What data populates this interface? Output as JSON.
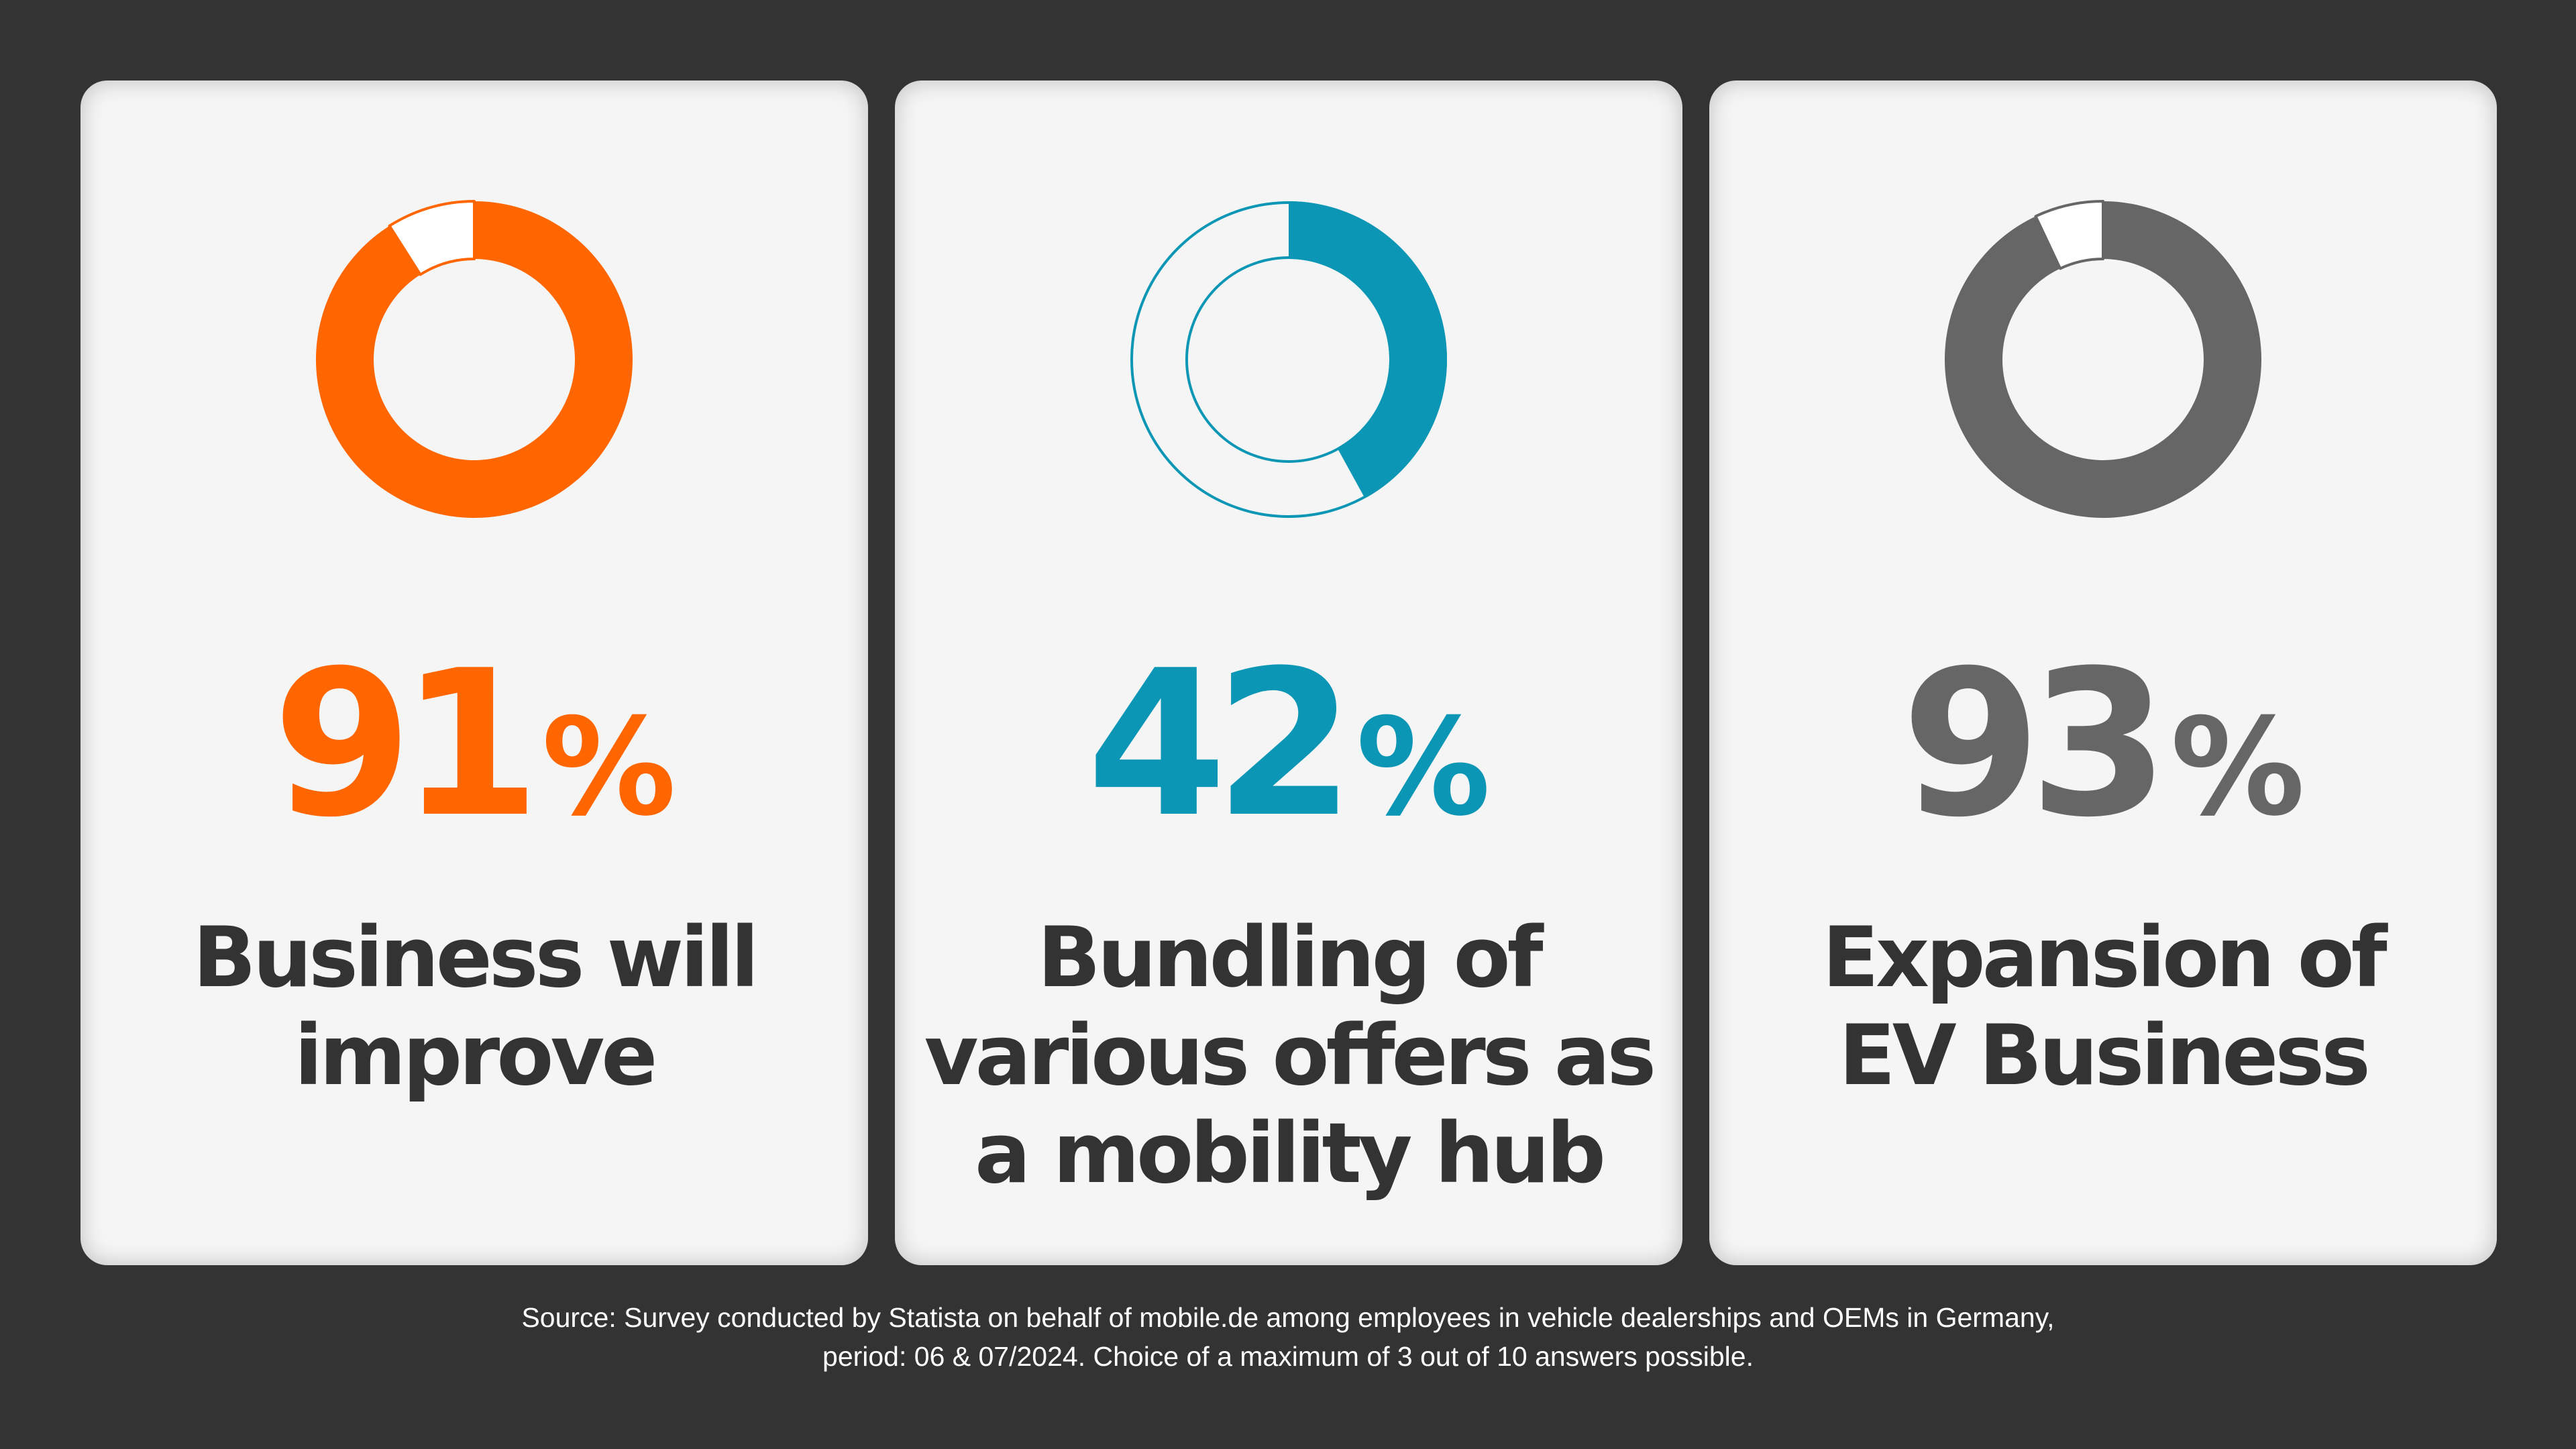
{
  "chart_data": [
    {
      "type": "pie",
      "value": 91,
      "value_text": "91",
      "unit": "%",
      "label_lines": [
        "Business will",
        "improve"
      ],
      "color": "#ff6600",
      "style": "filled"
    },
    {
      "type": "pie",
      "value": 42,
      "value_text": "42",
      "unit": "%",
      "label_lines": [
        "Bundling of",
        "various offers as",
        "a mobility hub"
      ],
      "color": "#0b96b5",
      "style": "outlined"
    },
    {
      "type": "pie",
      "value": 93,
      "value_text": "93",
      "unit": "%",
      "label_lines": [
        "Expansion of",
        "EV Business"
      ],
      "color": "#666666",
      "style": "filled"
    }
  ],
  "source_lines": [
    "Source: Survey conducted by Statista on behalf of mobile.de among employees in vehicle dealerships and OEMs in Germany,",
    "period: 06 & 07/2024. Choice of a maximum of 3 out of 10 answers possible."
  ]
}
